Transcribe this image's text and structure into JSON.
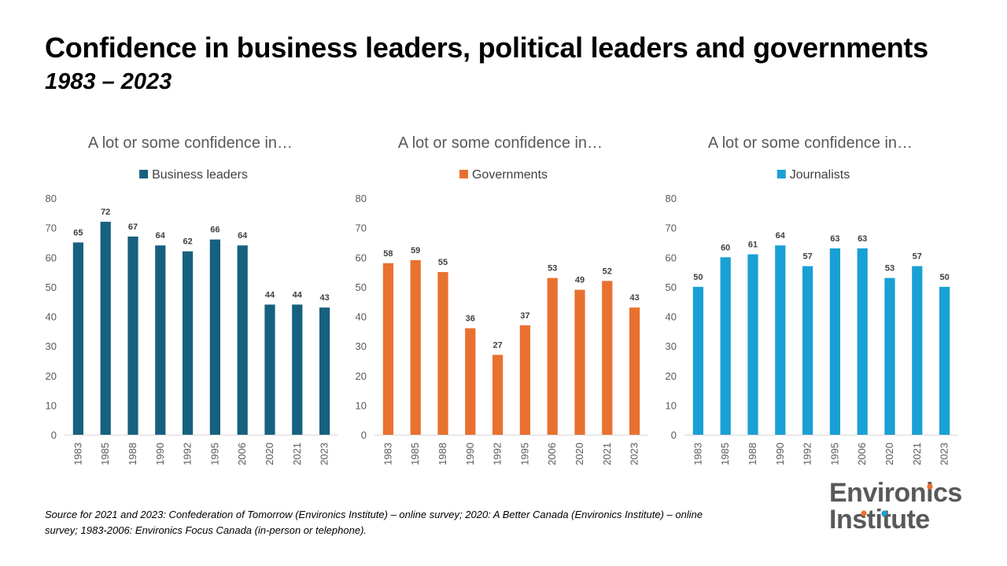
{
  "title": "Confidence in business leaders, political leaders and governments",
  "subtitle": "1983 – 2023",
  "source": "Source for 2021 and 2023: Confederation of Tomorrow (Environics Institute) – online survey; 2020: A Better Canada (Environics Institute) – online survey; 1983-2006: Environics Focus Canada (in-person or telephone).",
  "logo": {
    "line1": "Environics",
    "line2": "Institute"
  },
  "chart_data": [
    {
      "type": "bar",
      "title": "A lot or some confidence in…",
      "categories": [
        "1983",
        "1985",
        "1988",
        "1990",
        "1992",
        "1995",
        "2006",
        "2020",
        "2021",
        "2023"
      ],
      "series": [
        {
          "name": "Business leaders",
          "values": [
            65,
            72,
            67,
            64,
            62,
            66,
            64,
            44,
            44,
            43
          ],
          "color": "#17607f"
        }
      ],
      "ylim": [
        0,
        80
      ],
      "yticks": [
        0,
        10,
        20,
        30,
        40,
        50,
        60,
        70,
        80
      ],
      "legend": "top",
      "grid": false
    },
    {
      "type": "bar",
      "title": "A lot or some confidence in…",
      "categories": [
        "1983",
        "1985",
        "1988",
        "1990",
        "1992",
        "1995",
        "2006",
        "2020",
        "2021",
        "2023"
      ],
      "series": [
        {
          "name": "Governments",
          "values": [
            58,
            59,
            55,
            36,
            27,
            37,
            53,
            49,
            52,
            43
          ],
          "color": "#e8712f"
        }
      ],
      "ylim": [
        0,
        80
      ],
      "yticks": [
        0,
        10,
        20,
        30,
        40,
        50,
        60,
        70,
        80
      ],
      "legend": "top",
      "grid": false
    },
    {
      "type": "bar",
      "title": "A lot or some confidence in…",
      "categories": [
        "1983",
        "1985",
        "1988",
        "1990",
        "1992",
        "1995",
        "2006",
        "2020",
        "2021",
        "2023"
      ],
      "series": [
        {
          "name": "Journalists",
          "values": [
            50,
            60,
            61,
            64,
            57,
            63,
            63,
            53,
            57,
            50
          ],
          "color": "#19a0d4"
        }
      ],
      "ylim": [
        0,
        80
      ],
      "yticks": [
        0,
        10,
        20,
        30,
        40,
        50,
        60,
        70,
        80
      ],
      "legend": "top",
      "grid": false
    }
  ]
}
